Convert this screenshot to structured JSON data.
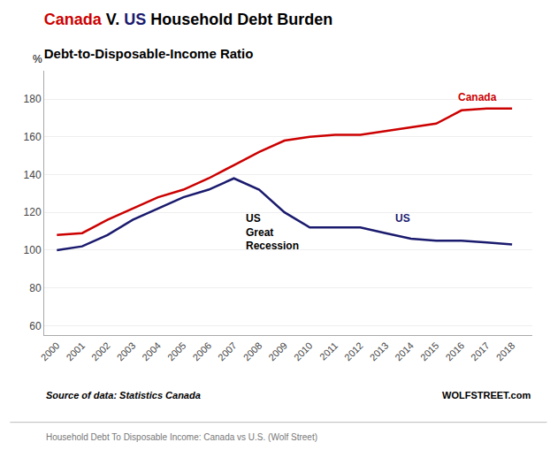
{
  "chart_data": {
    "type": "line",
    "title": "Canada V. US Household Debt Burden",
    "subtitle": "Debt-to-Disposable-Income Ratio",
    "y_label": "%",
    "x": [
      2000,
      2001,
      2002,
      2003,
      2004,
      2005,
      2006,
      2007,
      2008,
      2009,
      2010,
      2011,
      2012,
      2013,
      2014,
      2015,
      2016,
      2017,
      2018
    ],
    "series": [
      {
        "name": "Canada",
        "color": "#cc0000",
        "values": [
          108,
          109,
          116,
          122,
          128,
          132,
          138,
          145,
          152,
          158,
          160,
          161,
          161,
          163,
          165,
          167,
          174,
          175,
          175
        ]
      },
      {
        "name": "US",
        "color": "#1a1a6e",
        "values": [
          100,
          102,
          108,
          116,
          122,
          128,
          132,
          138,
          132,
          120,
          112,
          112,
          112,
          109,
          106,
          105,
          105,
          104,
          103
        ]
      }
    ],
    "xlim": [
      1999.5,
      2018.8
    ],
    "xticks": [
      2000,
      2001,
      2002,
      2003,
      2004,
      2005,
      2006,
      2007,
      2008,
      2009,
      2010,
      2011,
      2012,
      2013,
      2014,
      2015,
      2016,
      2017,
      2018
    ],
    "ylim": [
      55,
      195
    ],
    "yticks": [
      60,
      80,
      100,
      120,
      140,
      160,
      180
    ],
    "grid": "y",
    "annotations": [
      {
        "text": "US\nGreat\nRecession",
        "x": 2007.4,
        "y": 121,
        "color": "#000000"
      },
      {
        "text": "US",
        "x": 2013.3,
        "y": 117,
        "color": "#1a1a6e"
      },
      {
        "text": "Canada",
        "x": 2015.8,
        "y": 181,
        "color": "#cc0000"
      }
    ],
    "source_left": "Source of data: Statistics Canada",
    "source_right": "WOLFSTREET.com",
    "caption": "Household Debt To Disposable Income: Canada vs U.S. (Wolf Street)"
  }
}
